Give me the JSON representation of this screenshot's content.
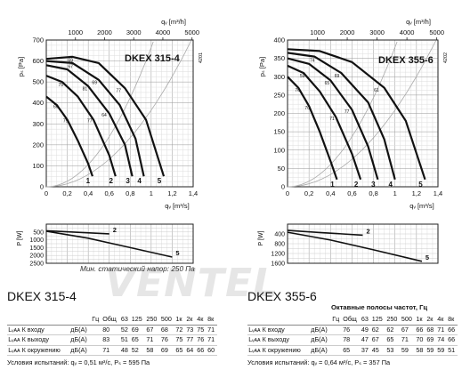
{
  "logo_text": "VENTEL",
  "charts": [
    {
      "id": "left",
      "model_label": "DKEX 315-4",
      "top_axis_label": "qᵥ [m³/h]",
      "top_ticks": [
        "1000",
        "2000",
        "3000",
        "4000",
        "5000"
      ],
      "bottom_axis_label": "qᵥ [m³/s]",
      "y_label": "pₛ [Pa]",
      "side_code": "4201",
      "min_pressure_note": "Мин. статический напор: 250 Па",
      "power_label": "P [W]",
      "power_curve_labels": [
        "2",
        "5"
      ]
    },
    {
      "id": "right",
      "model_label": "DKEX 355-6",
      "top_axis_label": "qᵥ [m³/h]",
      "top_ticks": [
        "1000",
        "2000",
        "3000",
        "4000",
        "5000"
      ],
      "bottom_axis_label": "qᵥ [m³/s]",
      "y_label": "pₛ [Pa]",
      "side_code": "4202",
      "power_label": "P [W]",
      "power_curve_labels": [
        "2",
        "5"
      ]
    }
  ],
  "chart_data": [
    {
      "type": "line",
      "title": "DKEX 315-4",
      "xlabel": "qᵥ [m³/s]",
      "ylabel": "pₛ [Pa]",
      "xlim": [
        0,
        1.4
      ],
      "ylim": [
        0,
        700
      ],
      "x_ticks": [
        0,
        0.2,
        0.4,
        0.6,
        0.8,
        1.0,
        1.2,
        1.4
      ],
      "y_ticks": [
        0,
        100,
        200,
        300,
        400,
        500,
        600,
        700
      ],
      "grid": true,
      "series": [
        {
          "name": "1",
          "x": [
            0,
            0.1,
            0.2,
            0.3,
            0.4,
            0.44
          ],
          "y": [
            430,
            390,
            320,
            220,
            110,
            50
          ]
        },
        {
          "name": "2",
          "x": [
            0,
            0.15,
            0.3,
            0.45,
            0.6,
            0.66
          ],
          "y": [
            530,
            500,
            430,
            320,
            150,
            50
          ]
        },
        {
          "name": "3",
          "x": [
            0,
            0.2,
            0.4,
            0.6,
            0.75,
            0.82
          ],
          "y": [
            580,
            560,
            480,
            350,
            200,
            50
          ]
        },
        {
          "name": "4",
          "x": [
            0,
            0.25,
            0.5,
            0.7,
            0.85,
            0.93
          ],
          "y": [
            600,
            590,
            510,
            390,
            230,
            50
          ]
        },
        {
          "name": "5",
          "x": [
            0,
            0.25,
            0.5,
            0.75,
            0.95,
            1.12
          ],
          "y": [
            610,
            620,
            590,
            470,
            320,
            50
          ]
        }
      ],
      "efficiency_labels": [
        "60",
        "79",
        "77",
        "75",
        "81",
        "64",
        "67",
        "69",
        "77",
        "69"
      ]
    },
    {
      "type": "line",
      "title": "DKEX 355-6",
      "xlabel": "qᵥ [m³/s]",
      "ylabel": "pₛ [Pa]",
      "xlim": [
        0,
        1.4
      ],
      "ylim": [
        0,
        400
      ],
      "x_ticks": [
        0,
        0.2,
        0.4,
        0.6,
        0.8,
        1.0,
        1.2,
        1.4
      ],
      "y_ticks": [
        0,
        50,
        100,
        150,
        200,
        250,
        300,
        350,
        400
      ],
      "grid": true,
      "series": [
        {
          "name": "1",
          "x": [
            0,
            0.1,
            0.2,
            0.3,
            0.4,
            0.46
          ],
          "y": [
            300,
            270,
            220,
            150,
            70,
            20
          ]
        },
        {
          "name": "2",
          "x": [
            0,
            0.15,
            0.3,
            0.45,
            0.6,
            0.68
          ],
          "y": [
            330,
            310,
            260,
            190,
            90,
            20
          ]
        },
        {
          "name": "3",
          "x": [
            0,
            0.2,
            0.4,
            0.6,
            0.75,
            0.84
          ],
          "y": [
            350,
            335,
            290,
            210,
            110,
            20
          ]
        },
        {
          "name": "4",
          "x": [
            0,
            0.25,
            0.5,
            0.75,
            0.9,
            1.0
          ],
          "y": [
            365,
            355,
            310,
            230,
            130,
            20
          ]
        },
        {
          "name": "5",
          "x": [
            0,
            0.3,
            0.6,
            0.9,
            1.1,
            1.28
          ],
          "y": [
            375,
            370,
            340,
            270,
            180,
            20
          ]
        }
      ],
      "efficiency_labels": [
        "76",
        "70",
        "71",
        "59",
        "65",
        "77",
        "74",
        "69",
        "61"
      ]
    },
    {
      "type": "line",
      "title": "",
      "xlabel": "",
      "ylabel": "P [W]",
      "ylim": [
        0,
        2500
      ],
      "y_ticks": [
        500,
        1000,
        1500,
        2000,
        2500
      ],
      "series": [
        {
          "name": "2",
          "x": [
            0,
            0.3,
            0.6
          ],
          "y": [
            420,
            520,
            620
          ]
        },
        {
          "name": "5",
          "x": [
            0,
            0.4,
            0.8,
            1.2
          ],
          "y": [
            450,
            900,
            1500,
            2100
          ]
        }
      ]
    },
    {
      "type": "line",
      "title": "",
      "xlabel": "",
      "ylabel": "P [W]",
      "ylim": [
        0,
        1600
      ],
      "y_ticks": [
        400,
        800,
        1200,
        1600
      ],
      "series": [
        {
          "name": "2",
          "x": [
            0,
            0.3,
            0.7
          ],
          "y": [
            260,
            340,
            450
          ]
        },
        {
          "name": "5",
          "x": [
            0,
            0.4,
            0.8,
            1.25
          ],
          "y": [
            330,
            650,
            1050,
            1520
          ]
        }
      ]
    }
  ],
  "specs": [
    {
      "model": "DKEX 315-4",
      "header": [
        "Гц",
        "Общ",
        "63",
        "125",
        "250",
        "500",
        "1к",
        "2к",
        "4к",
        "8к"
      ],
      "rows": [
        {
          "label": "Lᵥᴀᴀ К входу",
          "unit": "дБ(А)",
          "values": [
            "80",
            "52",
            "69",
            "67",
            "68",
            "72",
            "73",
            "75",
            "71"
          ]
        },
        {
          "label": "Lᵥᴀᴀ К выходу",
          "unit": "дБ(А)",
          "values": [
            "83",
            "51",
            "65",
            "71",
            "76",
            "75",
            "77",
            "76",
            "71"
          ]
        },
        {
          "label": "Lᵥᴀᴀ К окружению",
          "unit": "дБ(А)",
          "values": [
            "71",
            "48",
            "52",
            "58",
            "69",
            "65",
            "64",
            "66",
            "60"
          ]
        }
      ],
      "conditions": "Условия испытаний: qᵥ = 0,51 м³/c, Pₛ = 595 Па"
    },
    {
      "model": "DKEX 355-6",
      "octave_header": "Октавные полосы частот, Гц",
      "header": [
        "Гц",
        "Общ",
        "63",
        "125",
        "250",
        "500",
        "1к",
        "2к",
        "4к",
        "8к"
      ],
      "rows": [
        {
          "label": "Lᵥᴀᴀ К входу",
          "unit": "дБ(А)",
          "values": [
            "76",
            "49",
            "62",
            "62",
            "67",
            "66",
            "68",
            "71",
            "66"
          ]
        },
        {
          "label": "Lᵥᴀᴀ К выходу",
          "unit": "дБ(А)",
          "values": [
            "78",
            "47",
            "67",
            "65",
            "71",
            "70",
            "69",
            "74",
            "66"
          ]
        },
        {
          "label": "Lᵥᴀᴀ К окружению",
          "unit": "дБ(А)",
          "values": [
            "65",
            "37",
            "45",
            "53",
            "59",
            "58",
            "59",
            "59",
            "51"
          ]
        }
      ],
      "conditions": "Условия испытаний: qᵥ = 0,64 м³/c, Pₛ = 357 Па"
    }
  ]
}
